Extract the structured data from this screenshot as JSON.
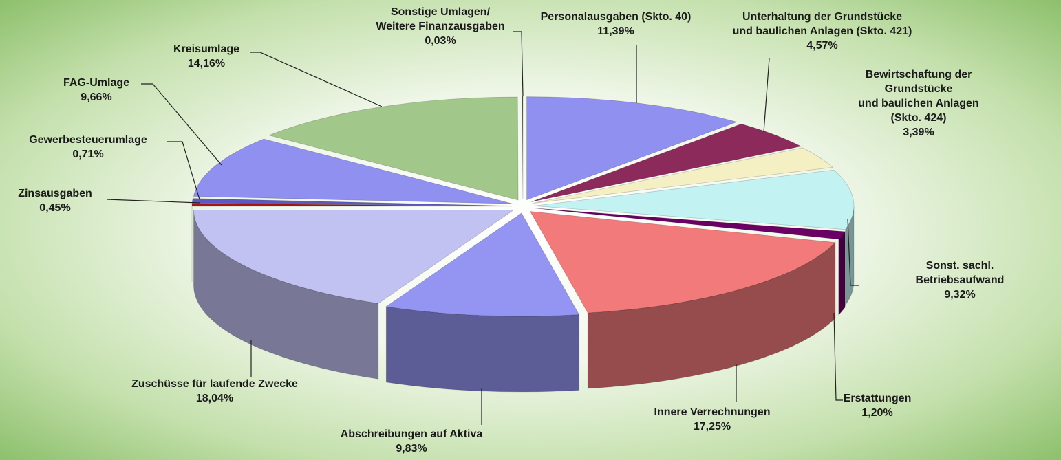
{
  "chart_data": {
    "type": "pie",
    "categories": [
      "Personalausgaben (Skto. 40)",
      "Unterhaltung der Grundstücke\nund baulichen Anlagen (Skto. 421)",
      "Bewirtschaftung der Grundstücke\nund baulichen Anlagen (Skto. 424)",
      "Sonst. sachl. Betriebsaufwand",
      "Erstattungen",
      "Innere Verrechnungen",
      "Abschreibungen auf Aktiva",
      "Zuschüsse für laufende Zwecke",
      "Zinsausgaben",
      "Gewerbesteuerumlage",
      "FAG-Umlage",
      "Kreisumlage",
      "Sonstige Umlagen/\nWeitere Finanzausgaben"
    ],
    "values": [
      11.39,
      4.57,
      3.39,
      9.32,
      1.2,
      17.25,
      9.83,
      18.04,
      0.45,
      0.71,
      9.66,
      14.16,
      0.03
    ],
    "value_labels": [
      "11,39%",
      "4,57%",
      "3,39%",
      "9,32%",
      "1,20%",
      "17,25%",
      "9,83%",
      "18,04%",
      "0,45%",
      "0,71%",
      "9,66%",
      "14,16%",
      "0,03%"
    ],
    "colors": [
      "#9090f0",
      "#8c2a5c",
      "#f4f0c4",
      "#c2f2f2",
      "#6a0064",
      "#f27a7a",
      "#9494f2",
      "#c2c2f2",
      "#a81414",
      "#5a5ac0",
      "#9090f0",
      "#a2c78a",
      "#404040"
    ]
  }
}
